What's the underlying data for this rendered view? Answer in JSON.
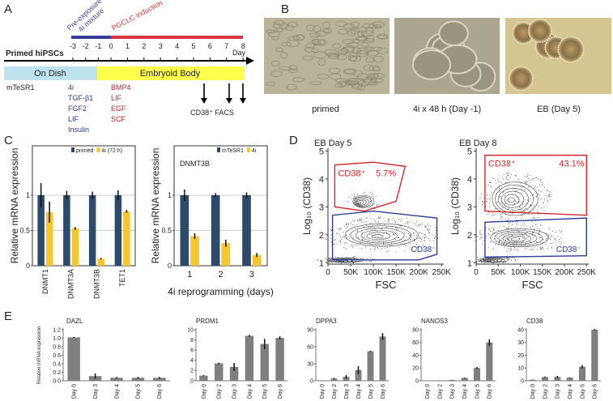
{
  "panels": {
    "A": {
      "label": "A",
      "title": "Primed hiPSCs",
      "pre_exposure": [
        "Pre-exposure to",
        "4i mixture"
      ],
      "induction": "PGCLC induction",
      "days": [
        -3,
        -2,
        -1,
        0,
        1,
        2,
        3,
        4,
        5,
        6,
        7,
        8
      ],
      "day_label": "Day",
      "stages": [
        "On Dish",
        "Embryoid Body"
      ],
      "base_medium": "mTeSR1",
      "four_i": [
        "4i",
        "TGF-β1",
        "FGF2",
        "LIF",
        "Insulin"
      ],
      "eb_factors": [
        "BMP4",
        "LIF",
        "EGF",
        "SCF"
      ],
      "facs": "CD38⁺ FACS"
    },
    "B": {
      "label": "B",
      "images": [
        "primed",
        "4i x 48 h (Day -1)",
        "EB (Day 5)"
      ]
    },
    "C": {
      "label": "C"
    },
    "D": {
      "label": "D"
    },
    "E": {
      "label": "E"
    }
  },
  "chart_data": [
    {
      "type": "bar",
      "categories": [
        "DNMT1",
        "DNMT3A",
        "DNMT3B",
        "TET1"
      ],
      "series": [
        {
          "name": "primed",
          "color": "#2d4a6b",
          "values": [
            1,
            1,
            1,
            1
          ],
          "errors": [
            0.17,
            0.06,
            0.05,
            0.07
          ]
        },
        {
          "name": "4i (72 h)",
          "color": "#f6c62f",
          "values": [
            0.76,
            0.53,
            0.1,
            0.77
          ],
          "errors": [
            0.15,
            0.02,
            0.01,
            0.02
          ]
        }
      ],
      "ylabel": "Relative mRNA expression",
      "ylim": [
        0,
        1.7
      ],
      "yticks": [
        0,
        0.5,
        1
      ],
      "grid": true,
      "frame": true
    },
    {
      "type": "bar",
      "title": "DNMT3B",
      "categories": [
        "1",
        "2",
        "3"
      ],
      "xlabel": "4i reprogramming (days)",
      "series": [
        {
          "name": "mTeSR1",
          "color": "#2d4a6b",
          "values": [
            1,
            1,
            1
          ],
          "errors": [
            0.08,
            0.03,
            0.04
          ]
        },
        {
          "name": "4i",
          "color": "#f6c62f",
          "values": [
            0.42,
            0.32,
            0.15
          ],
          "errors": [
            0.04,
            0.05,
            0.03
          ]
        }
      ],
      "ylabel": "Relative mRNA expression",
      "ylim": [
        0,
        1.7
      ],
      "yticks": [
        0,
        0.5,
        1
      ],
      "grid": true,
      "frame": true
    },
    {
      "type": "flow",
      "title": "EB Day 5",
      "xlabel": "FSC",
      "ylabel": "Log₁₀ (CD38)",
      "xlim": [
        0,
        255000
      ],
      "xticks": [
        0,
        {
          "value": 50000,
          "label": "50K"
        },
        {
          "value": 100000,
          "label": "100K"
        },
        {
          "value": 150000,
          "label": "150K"
        },
        {
          "value": 200000,
          "label": "200K"
        },
        {
          "value": 250000,
          "label": "250K"
        }
      ],
      "ylim": [
        0.95,
        5.1
      ],
      "yticks": [
        1,
        2,
        3,
        4,
        5
      ],
      "gates": [
        {
          "name": "CD38⁺",
          "percent": "5.7%",
          "color": "#d7262b"
        },
        {
          "name": "CD38⁻",
          "color": "#2b3c9b"
        }
      ]
    },
    {
      "type": "flow",
      "title": "EB Day 8",
      "xlabel": "FSC",
      "ylabel": "Log₁₀ (CD38)",
      "xlim": [
        0,
        255000
      ],
      "xticks": [
        0,
        {
          "value": 50000,
          "label": "50K"
        },
        {
          "value": 100000,
          "label": "100K"
        },
        {
          "value": 150000,
          "label": "150K"
        },
        {
          "value": 200000,
          "label": "200K"
        },
        {
          "value": 250000,
          "label": "250K"
        }
      ],
      "ylim": [
        0.95,
        5.1
      ],
      "yticks": [
        1,
        2,
        3,
        4,
        5
      ],
      "gates": [
        {
          "name": "CD38⁺",
          "percent": "43.1%",
          "color": "#d7262b"
        },
        {
          "name": "CD38⁻",
          "color": "#2b3c9b"
        }
      ]
    },
    {
      "type": "bar",
      "title": "DAZL",
      "ylabel": "Relative mRNA expression",
      "categories": [
        "Day 0",
        "Day 3",
        "Day 4",
        "Day 5",
        "Day 6"
      ],
      "values": [
        1.02,
        0.11,
        0.07,
        0.07,
        0.07
      ],
      "errors": [
        0.01,
        0.06,
        0.02,
        0.02,
        0.02
      ],
      "color": "#7f7f7f",
      "ylim": [
        0,
        1.2
      ],
      "yticks": [
        {
          "value": 0,
          "label": "0.0"
        },
        0.2,
        0.4,
        0.6,
        0.8,
        {
          "value": 1,
          "label": "1.0"
        },
        1.2
      ]
    },
    {
      "type": "bar",
      "title": "PRDM1",
      "categories": [
        "Day 0",
        "Day 2",
        "Day 3",
        "Day 4",
        "Day 5",
        "Day 6"
      ],
      "values": [
        1,
        3.4,
        2.7,
        8.8,
        7.2,
        8.4
      ],
      "errors": [
        0.1,
        0.15,
        0.8,
        0.2,
        1.0,
        0.3
      ],
      "color": "#7f7f7f",
      "ylim": [
        0,
        10
      ],
      "yticks": [
        0,
        2,
        4,
        6,
        8,
        10
      ]
    },
    {
      "type": "bar",
      "title": "DPPA3",
      "categories": [
        "Day 0",
        "Day 2",
        "Day 3",
        "Day 4",
        "Day 5",
        "Day 6"
      ],
      "values": [
        0.5,
        4,
        7,
        19,
        52,
        78
      ],
      "errors": [
        0.2,
        1,
        3,
        7,
        1,
        6
      ],
      "color": "#7f7f7f",
      "ylim": [
        0,
        90
      ],
      "yticks": [
        0,
        30,
        60,
        90
      ]
    },
    {
      "type": "bar",
      "title": "NANOS3",
      "categories": [
        "Day 0",
        "Day 2",
        "Day 3",
        "Day 4",
        "Day 5",
        "Day 6"
      ],
      "values": [
        0.6,
        0.5,
        1.3,
        4.5,
        20,
        60
      ],
      "errors": [
        0.1,
        0.2,
        0.2,
        0.5,
        1.5,
        5
      ],
      "color": "#7f7f7f",
      "ylim": [
        0,
        80
      ],
      "yticks": [
        0,
        20,
        40,
        60,
        80
      ]
    },
    {
      "type": "bar",
      "title": "CD38",
      "categories": [
        "Day 0",
        "Day 2",
        "Day 3",
        "Day 4",
        "Day 5",
        "Day 6"
      ],
      "values": [
        0.8,
        2.9,
        3,
        2.4,
        11,
        40
      ],
      "errors": [
        0.1,
        0.4,
        0.8,
        0.3,
        1.2,
        0.5
      ],
      "color": "#7f7f7f",
      "ylim": [
        0,
        40
      ],
      "yticks": [
        0,
        10,
        20,
        30,
        40
      ]
    }
  ]
}
